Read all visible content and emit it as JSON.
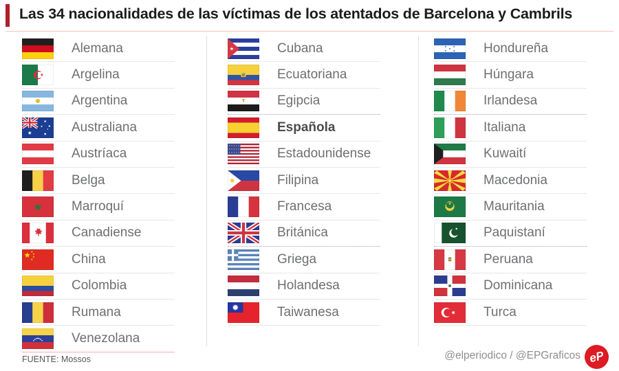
{
  "title": {
    "text": "Las 34 nacionalidades de las víctimas de los atentados de Barcelona y Cambrils"
  },
  "colors": {
    "accent_red": "#b01e2a",
    "title_text": "#1c1c1c",
    "label_gray": "#6e6f71",
    "bold_label_gray": "#4b4b4d",
    "separator_gray": "#e7e7e7",
    "separator_accent": "#f2b3ab",
    "column_divider": "#e2e2e2",
    "logo_red": "#dd1b24"
  },
  "columns": [
    {
      "items": [
        {
          "label": "Alemana",
          "flag": "germany-flag"
        },
        {
          "label": "Argelina",
          "flag": "algeria-flag"
        },
        {
          "label": "Argentina",
          "flag": "argentina-flag"
        },
        {
          "label": "Australiana",
          "flag": "australia-flag"
        },
        {
          "label": "Austríaca",
          "flag": "austria-flag"
        },
        {
          "label": "Belga",
          "flag": "belgium-flag"
        },
        {
          "label": "Marroquí",
          "flag": "morocco-flag"
        },
        {
          "label": "Canadiense",
          "flag": "canada-flag"
        },
        {
          "label": "China",
          "flag": "china-flag"
        },
        {
          "label": "Colombia",
          "flag": "colombia-flag"
        },
        {
          "label": "Rumana",
          "flag": "romania-flag"
        },
        {
          "label": "Venezolana",
          "flag": "venezuela-flag",
          "separator": "accent"
        }
      ]
    },
    {
      "items": [
        {
          "label": "Cubana",
          "flag": "cuba-flag"
        },
        {
          "label": "Ecuatoriana",
          "flag": "ecuador-flag"
        },
        {
          "label": "Egipcia",
          "flag": "egypt-flag",
          "separator": "dotted"
        },
        {
          "label": "Española",
          "flag": "spain-flag",
          "bold": true
        },
        {
          "label": "Estadounidense",
          "flag": "usa-flag"
        },
        {
          "label": "Filipina",
          "flag": "philippines-flag"
        },
        {
          "label": "Francesa",
          "flag": "france-flag"
        },
        {
          "label": "Británica",
          "flag": "uk-flag",
          "separator": "dotted"
        },
        {
          "label": "Griega",
          "flag": "greece-flag"
        },
        {
          "label": "Holandesa",
          "flag": "netherlands-flag"
        },
        {
          "label": "Taiwanesa",
          "flag": "taiwan-flag"
        }
      ]
    },
    {
      "items": [
        {
          "label": "Hondureña",
          "flag": "honduras-flag"
        },
        {
          "label": "Húngara",
          "flag": "hungary-flag"
        },
        {
          "label": "Irlandesa",
          "flag": "ireland-flag",
          "separator": "dotted"
        },
        {
          "label": "Italiana",
          "flag": "italy-flag"
        },
        {
          "label": "Kuwaití",
          "flag": "kuwait-flag"
        },
        {
          "label": "Macedonia",
          "flag": "macedonia-flag"
        },
        {
          "label": "Mauritania",
          "flag": "mauritania-flag"
        },
        {
          "label": "Paquistaní",
          "flag": "pakistan-flag",
          "separator": "dotted"
        },
        {
          "label": "Peruana",
          "flag": "peru-flag"
        },
        {
          "label": "Dominicana",
          "flag": "dominican-republic-flag"
        },
        {
          "label": "Turca",
          "flag": "turkey-flag"
        }
      ]
    }
  ],
  "footer": {
    "source": "FUENTE: Mossos",
    "credits": "@elperiodico / @EPGraficos",
    "logo_text": "eP"
  }
}
